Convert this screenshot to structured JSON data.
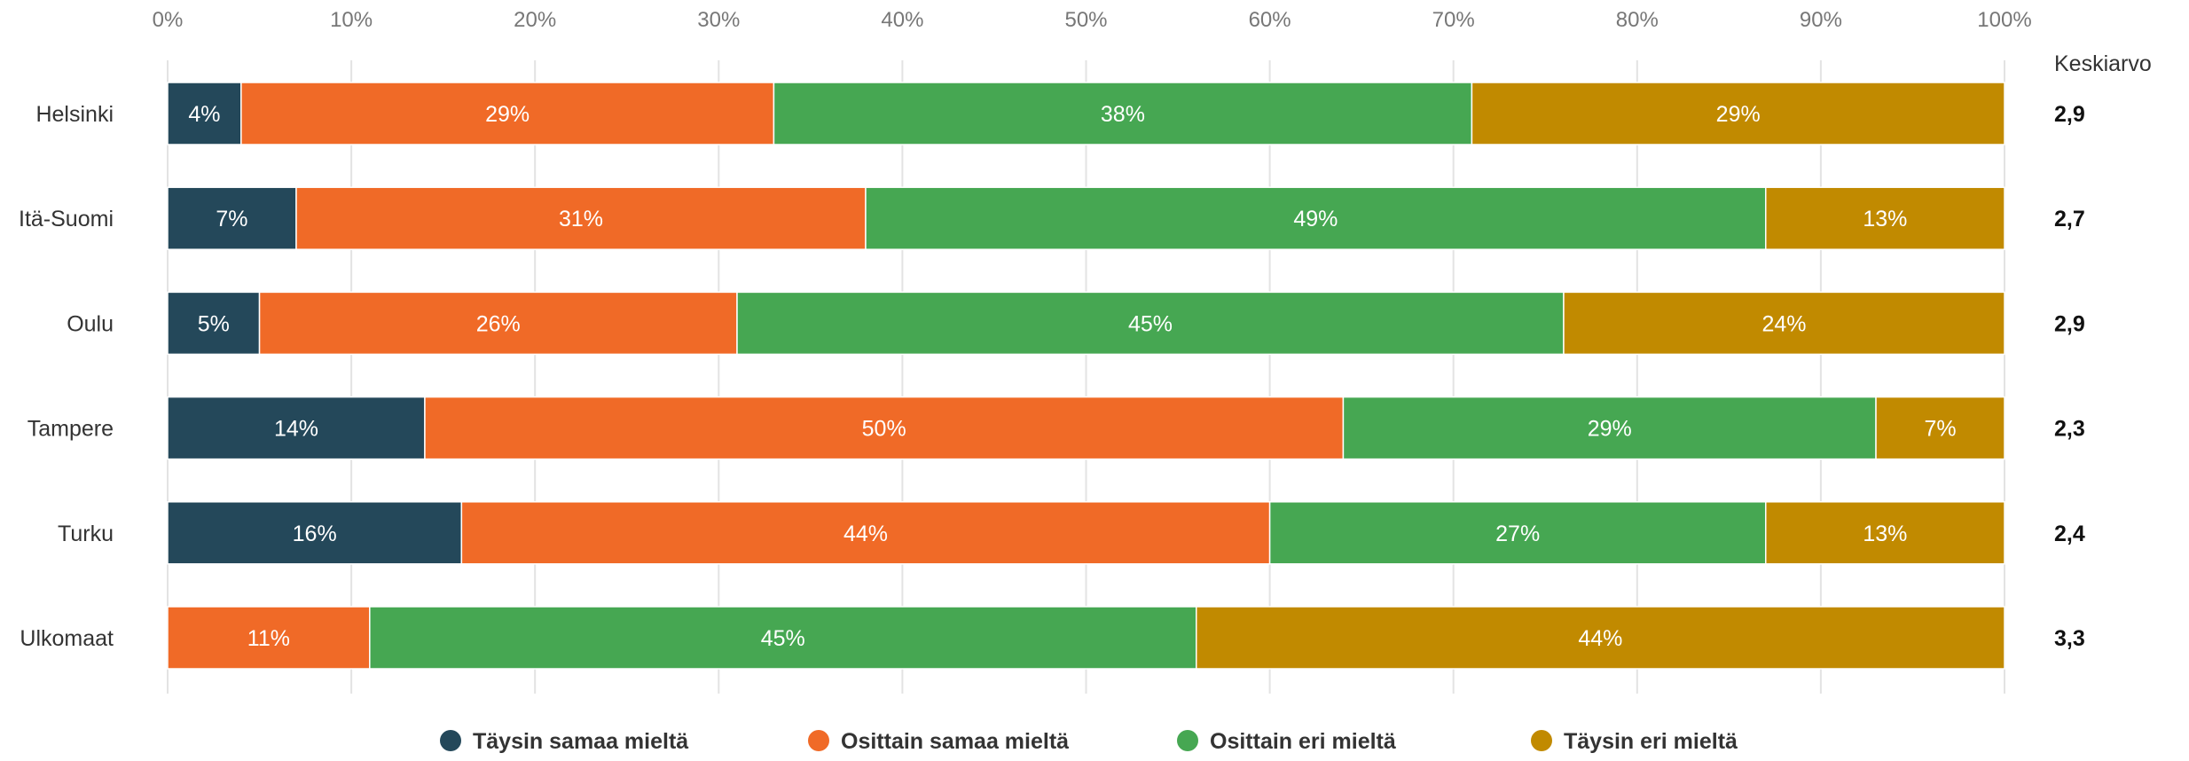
{
  "chart_data": {
    "type": "bar",
    "orientation": "horizontal",
    "stacked": true,
    "percent_scale": true,
    "categories": [
      "Helsinki",
      "Itä-Suomi",
      "Oulu",
      "Tampere",
      "Turku",
      "Ulkomaat"
    ],
    "series": [
      {
        "name": "Täysin samaa mieltä",
        "color": "#24485a",
        "values": [
          4,
          7,
          5,
          14,
          16,
          0
        ]
      },
      {
        "name": "Osittain samaa mieltä",
        "color": "#f06a27",
        "values": [
          29,
          31,
          26,
          50,
          44,
          11
        ]
      },
      {
        "name": "Osittain eri mieltä",
        "color": "#46a752",
        "values": [
          38,
          49,
          45,
          29,
          27,
          45
        ]
      },
      {
        "name": "Täysin eri mieltä",
        "color": "#c18a00",
        "values": [
          29,
          13,
          24,
          7,
          13,
          44
        ]
      }
    ],
    "xlim": [
      0,
      100
    ],
    "x_ticks": [
      "0%",
      "10%",
      "20%",
      "30%",
      "40%",
      "50%",
      "60%",
      "70%",
      "80%",
      "90%",
      "100%"
    ],
    "grid": true,
    "legend_position": "bottom",
    "average": {
      "header": "Keskiarvo",
      "values": [
        "2,9",
        "2,7",
        "2,9",
        "2,3",
        "2,4",
        "3,3"
      ]
    }
  }
}
